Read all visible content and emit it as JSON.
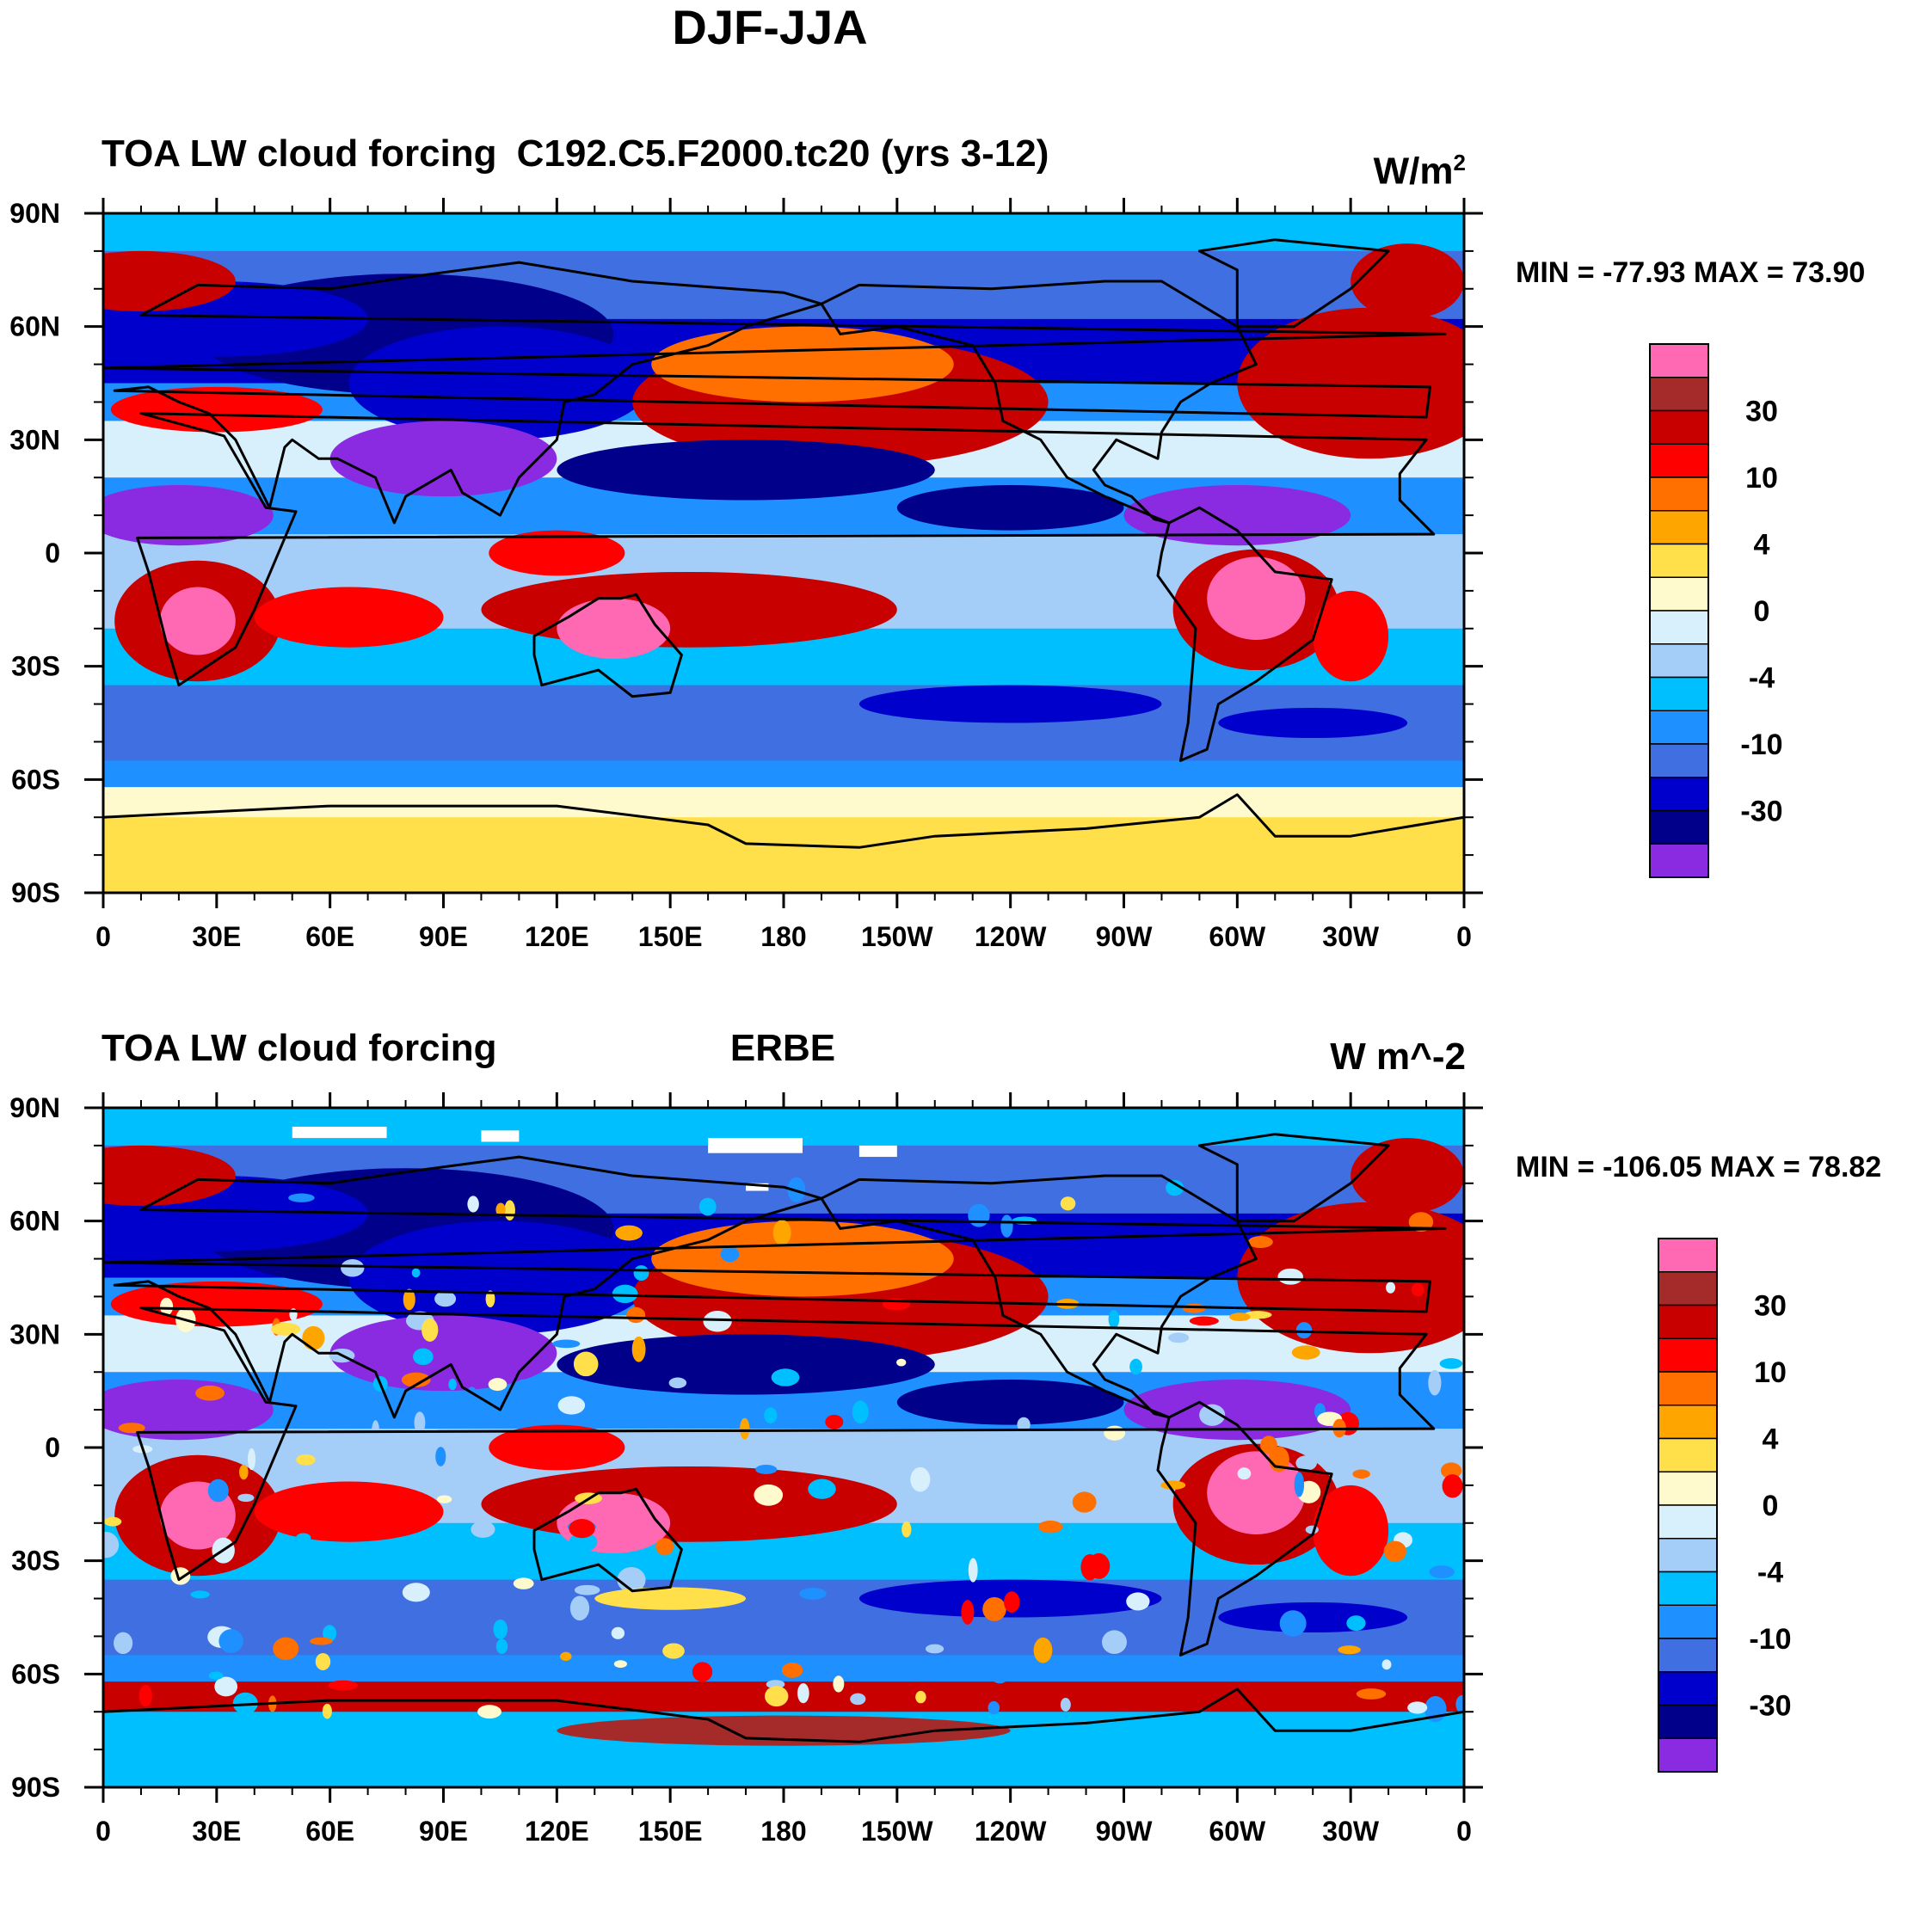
{
  "main_title": "DJF-JJA",
  "palette": [
    "#8a2be2",
    "#00008b",
    "#0000cd",
    "#3f6fe0",
    "#1e90ff",
    "#00bfff",
    "#a4cdf8",
    "#d7f0fc",
    "#fffacd",
    "#ffe04a",
    "#ffa500",
    "#ff7000",
    "#ff0000",
    "#c80000",
    "#a52a2a",
    "#ff69b4"
  ],
  "colorbar_labels": [
    "30",
    "10",
    "4",
    "0",
    "-4",
    "-10",
    "-30"
  ],
  "x_ticks": [
    "0",
    "30E",
    "60E",
    "90E",
    "120E",
    "150E",
    "180",
    "150W",
    "120W",
    "90W",
    "60W",
    "30W",
    "0"
  ],
  "y_ticks": [
    "90N",
    "60N",
    "30N",
    "0",
    "30S",
    "60S",
    "90S"
  ],
  "panels": [
    {
      "left_title": "TOA LW cloud forcing",
      "center_title": "C192.C5.F2000.tc20 (yrs 3-12)",
      "units": "W/m",
      "units_sup": "2",
      "min_max": "MIN = -77.93 MAX =  73.90"
    },
    {
      "left_title": "TOA LW cloud forcing",
      "center_title": "ERBE",
      "units": "W m^-2",
      "units_sup": "",
      "min_max": "MIN = -106.05 MAX =  78.82"
    }
  ]
}
